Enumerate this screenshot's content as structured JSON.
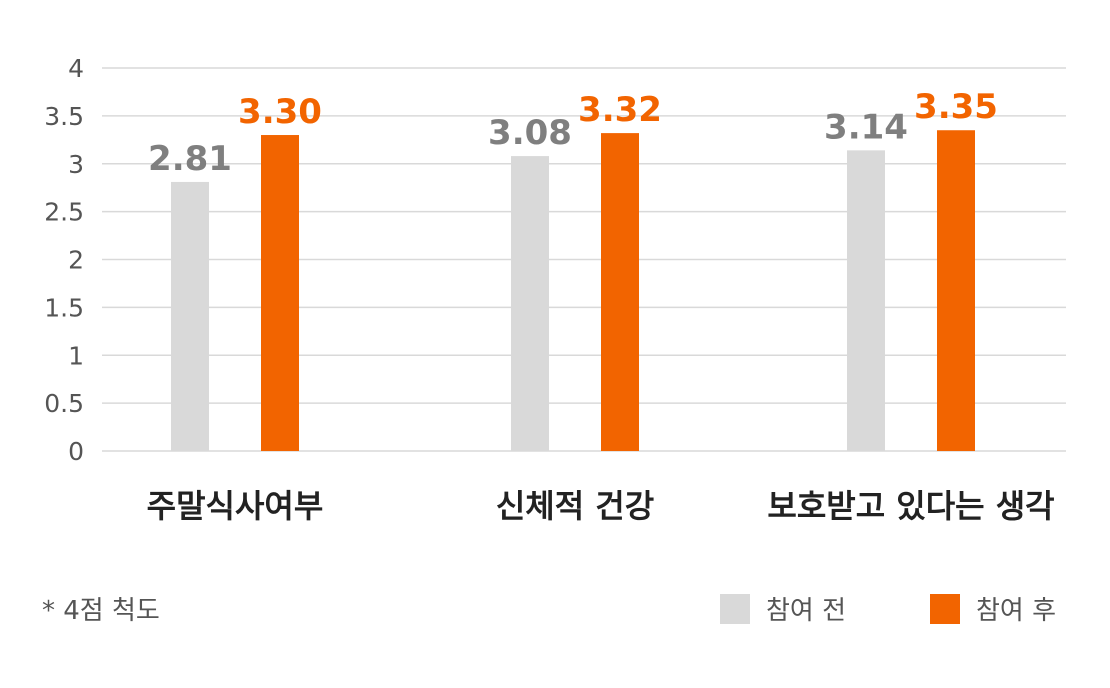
{
  "chart_data": {
    "type": "bar",
    "categories": [
      "주말식사여부",
      "신체적 건강",
      "보호받고 있다는 생각"
    ],
    "series": [
      {
        "name": "참여 전",
        "values": [
          2.81,
          3.08,
          3.14
        ],
        "labels": [
          "2.81",
          "3.08",
          "3.14"
        ],
        "color": "#d9d9d9",
        "label_color": "#7f7f7f"
      },
      {
        "name": "참여 후",
        "values": [
          3.3,
          3.32,
          3.35
        ],
        "labels": [
          "3.30",
          "3.32",
          "3.35"
        ],
        "color": "#f26400",
        "label_color": "#f26400"
      }
    ],
    "ylim": [
      0,
      4
    ],
    "yticks": [
      "0",
      "0.5",
      "1",
      "1.5",
      "2",
      "2.5",
      "3",
      "3.5",
      "4"
    ],
    "grid": true,
    "legend_position": "bottom-right"
  },
  "note": "* 4점 척도",
  "legend": [
    {
      "label": "참여 전",
      "color": "#d9d9d9"
    },
    {
      "label": "참여 후",
      "color": "#f26400"
    }
  ]
}
